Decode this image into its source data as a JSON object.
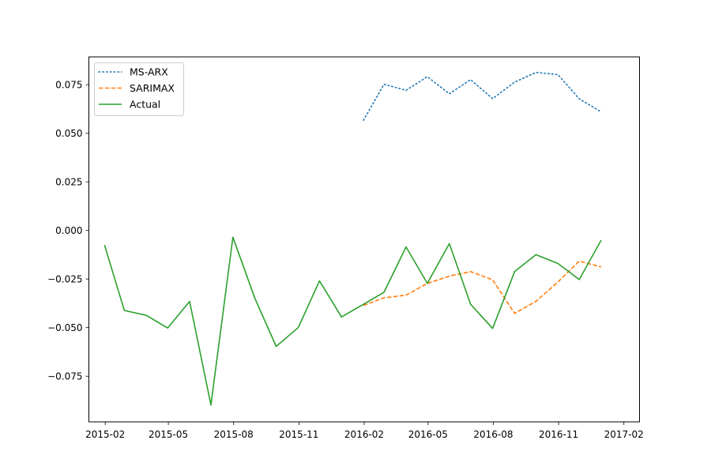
{
  "chart_data": {
    "type": "line",
    "title": "",
    "xlabel": "",
    "ylabel": "",
    "grid": false,
    "legend_placement": "top-left",
    "x_ticks": [
      "2015-02",
      "2015-05",
      "2015-08",
      "2015-11",
      "2016-02",
      "2016-05",
      "2016-08",
      "2016-11",
      "2017-02"
    ],
    "y_ticks": [
      "0.075",
      "0.050",
      "0.025",
      "0.000",
      "−0.025",
      "−0.050",
      "−0.075"
    ],
    "xlim": [
      "2015-01-09",
      "2017-02-23"
    ],
    "ylim": [
      -0.0985,
      0.0893
    ],
    "series": [
      {
        "name": "MS-ARX",
        "color": "#1f77b4",
        "dash": "dotted",
        "x": [
          "2016-01-31",
          "2016-02-29",
          "2016-03-31",
          "2016-04-30",
          "2016-05-31",
          "2016-06-30",
          "2016-07-31",
          "2016-08-31",
          "2016-09-30",
          "2016-10-31",
          "2016-11-30",
          "2016-12-31"
        ],
        "values": [
          0.0567,
          0.0752,
          0.0721,
          0.0791,
          0.0703,
          0.0776,
          0.0678,
          0.0763,
          0.0813,
          0.0802,
          0.0677,
          0.061
        ]
      },
      {
        "name": "SARIMAX",
        "color": "#ff7f0e",
        "dash": "dashed",
        "x": [
          "2016-01-31",
          "2016-02-29",
          "2016-03-31",
          "2016-04-30",
          "2016-05-31",
          "2016-06-30",
          "2016-07-31",
          "2016-08-31",
          "2016-09-30",
          "2016-10-31",
          "2016-11-30",
          "2016-12-31"
        ],
        "values": [
          -0.0386,
          -0.0347,
          -0.0333,
          -0.0273,
          -0.0235,
          -0.0212,
          -0.0254,
          -0.0427,
          -0.0365,
          -0.0265,
          -0.0158,
          -0.0188
        ]
      },
      {
        "name": "Actual",
        "color": "#2ca02c",
        "dash": "solid",
        "x": [
          "2015-01-31",
          "2015-02-28",
          "2015-03-31",
          "2015-04-30",
          "2015-05-31",
          "2015-06-30",
          "2015-07-31",
          "2015-08-31",
          "2015-09-30",
          "2015-10-31",
          "2015-11-30",
          "2015-12-31",
          "2016-01-31",
          "2016-02-29",
          "2016-03-31",
          "2016-04-30",
          "2016-05-31",
          "2016-06-30",
          "2016-07-31",
          "2016-08-31",
          "2016-09-30",
          "2016-10-31",
          "2016-11-30",
          "2016-12-31"
        ],
        "values": [
          -0.0075,
          -0.0412,
          -0.0437,
          -0.0502,
          -0.0365,
          -0.0898,
          -0.0035,
          -0.035,
          -0.0597,
          -0.05,
          -0.026,
          -0.0445,
          -0.038,
          -0.0318,
          -0.0085,
          -0.0272,
          -0.0068,
          -0.038,
          -0.0504,
          -0.0212,
          -0.0125,
          -0.017,
          -0.0253,
          -0.005
        ]
      }
    ]
  }
}
